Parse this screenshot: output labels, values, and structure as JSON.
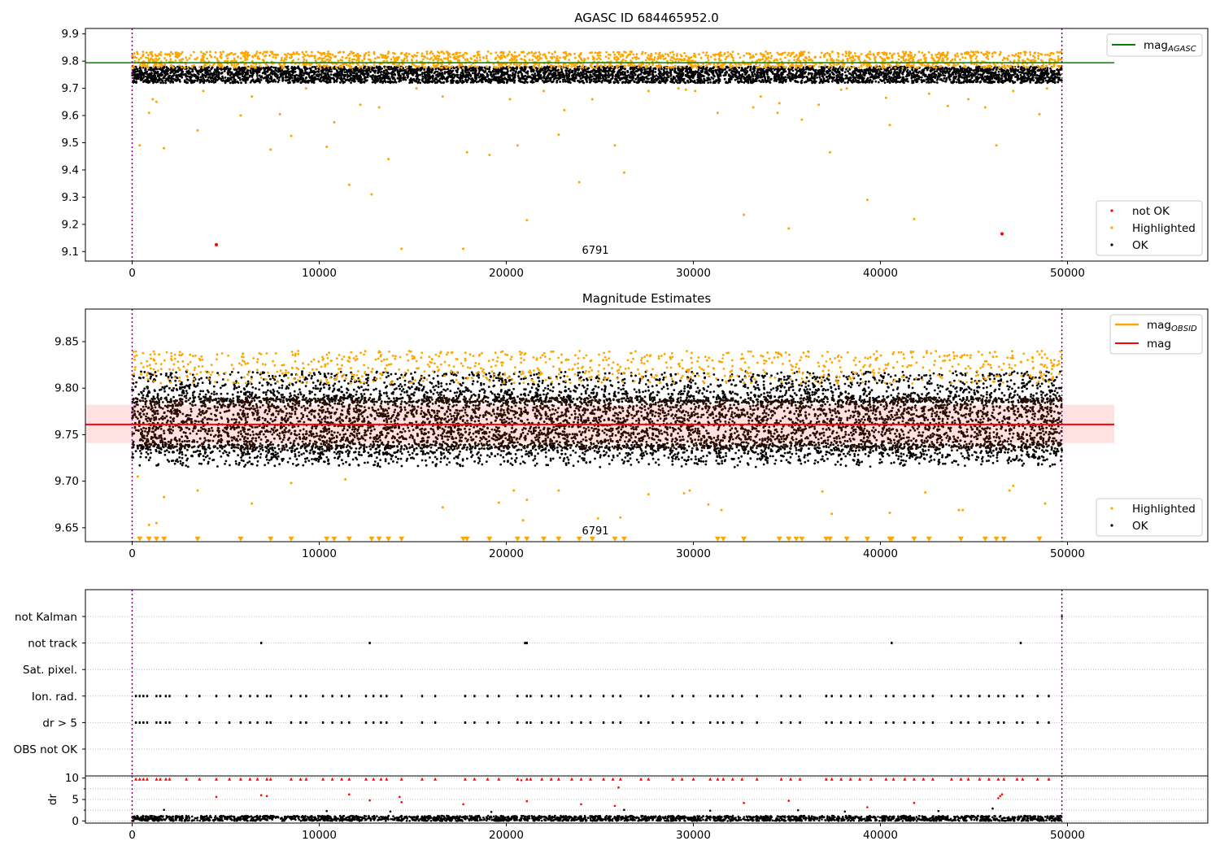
{
  "figure": {
    "background": "#ffffff"
  },
  "chart_data": [
    {
      "type": "scatter",
      "id": "p1",
      "title": "AGASC ID 684465952.0",
      "xlabel": "",
      "ylabel": "",
      "xlim": [
        -2500,
        57500
      ],
      "ylim": [
        9.065,
        9.92
      ],
      "xticks": [
        0,
        10000,
        20000,
        30000,
        40000,
        50000
      ],
      "yticks": [
        9.1,
        9.2,
        9.3,
        9.4,
        9.5,
        9.6,
        9.7,
        9.8,
        9.9
      ],
      "ytick_decimals": 1,
      "grid": false,
      "vlines": {
        "x": [
          0,
          49700
        ],
        "color": "#800080"
      },
      "hline": {
        "y": 9.794,
        "x": [
          -2500,
          52500
        ],
        "color": "#008000"
      },
      "band": {
        "lo": 9.72,
        "hi": 9.78,
        "color": "#000000",
        "density": 5200
      },
      "upper_fringe": {
        "lo": 9.775,
        "hi": 9.835,
        "color": "#ffa500",
        "density": 1900
      },
      "annotation": {
        "text": "6791",
        "x": 24500,
        "y": 9.06
      },
      "series": [
        {
          "name": "not OK",
          "color": "#ff0000",
          "x": [
            4500,
            46500
          ],
          "y": [
            9.125,
            9.165
          ]
        },
        {
          "name": "Highlighted",
          "color": "#ffa500",
          "x": [
            400,
            900,
            1300,
            1700,
            3500,
            5800,
            7400,
            8500,
            10400,
            10800,
            11600,
            12800,
            13200,
            13700,
            14400,
            17700,
            17900,
            19100,
            20600,
            21100,
            22800,
            23900,
            25800,
            26300,
            27600,
            31300,
            32700,
            33200,
            34600,
            35100,
            35800,
            37300,
            37900,
            39300,
            40500,
            41800,
            43600,
            46200,
            48500,
            3800,
            6400,
            9300,
            15200,
            16600,
            20200,
            22000,
            24600,
            29200,
            30100,
            33600,
            38200,
            42600,
            44700,
            47100,
            48900,
            1100,
            7900,
            12200,
            23100,
            29600,
            34500,
            36700,
            40300,
            45600
          ],
          "y": [
            9.49,
            9.61,
            9.65,
            9.48,
            9.545,
            9.6,
            9.475,
            9.525,
            9.485,
            9.575,
            9.345,
            9.31,
            9.63,
            9.44,
            9.11,
            9.11,
            9.465,
            9.455,
            9.49,
            9.215,
            9.53,
            9.355,
            9.49,
            9.39,
            9.69,
            9.61,
            9.235,
            9.63,
            9.645,
            9.185,
            9.585,
            9.465,
            9.695,
            9.29,
            9.565,
            9.22,
            9.635,
            9.49,
            9.605,
            9.69,
            9.67,
            9.7,
            9.7,
            9.67,
            9.66,
            9.69,
            9.66,
            9.7,
            9.69,
            9.67,
            9.7,
            9.68,
            9.66,
            9.69,
            9.7,
            9.66,
            9.605,
            9.64,
            9.62,
            9.695,
            9.61,
            9.64,
            9.665,
            9.63
          ]
        },
        {
          "name": "OK",
          "color": "#000000",
          "x": [],
          "y": []
        }
      ],
      "legends": [
        {
          "placement": "upper-right",
          "entries": [
            {
              "kind": "line",
              "color": "#008000",
              "label": "mag",
              "sub": "AGASC"
            }
          ]
        },
        {
          "placement": "lower-right",
          "entries": [
            {
              "kind": "dot",
              "color": "#ff0000",
              "label": "not OK"
            },
            {
              "kind": "dot",
              "color": "#ffa500",
              "label": "Highlighted"
            },
            {
              "kind": "dot",
              "color": "#000000",
              "label": "OK"
            }
          ]
        }
      ]
    },
    {
      "type": "scatter",
      "id": "p2",
      "title": "Magnitude Estimates",
      "xlabel": "",
      "ylabel": "",
      "xlim": [
        -2500,
        57500
      ],
      "ylim": [
        9.635,
        9.885
      ],
      "xticks": [
        0,
        10000,
        20000,
        30000,
        40000,
        50000
      ],
      "yticks": [
        9.65,
        9.7,
        9.75,
        9.8,
        9.85
      ],
      "ytick_decimals": 2,
      "grid": false,
      "vlines": {
        "x": [
          0,
          49700
        ],
        "color": "#800080"
      },
      "shade": {
        "lo": 9.741,
        "hi": 9.782,
        "x": [
          -2500,
          52500
        ],
        "color": "#ffb3b3",
        "opacity": 0.4
      },
      "hline": {
        "y": 9.761,
        "x": [
          -2500,
          52500
        ],
        "color": "#ff0000"
      },
      "band": {
        "lo": 9.735,
        "hi": 9.79,
        "color": "#2a0e00",
        "density": 6500
      },
      "spikes": {
        "lo": 9.715,
        "hi": 9.818,
        "color": "#000000",
        "density": 3800
      },
      "upper_fringe": {
        "lo": 9.805,
        "hi": 9.84,
        "color": "#ffa500",
        "density": 900
      },
      "annotation": {
        "text": "6791",
        "x": 24500,
        "y": 9.637
      },
      "floor_markers": {
        "y": 9.637,
        "color": "#ffa500",
        "x": [
          400,
          900,
          1300,
          1700,
          3500,
          5800,
          7400,
          8500,
          10400,
          10800,
          11600,
          12800,
          13200,
          13700,
          14400,
          17700,
          17900,
          19100,
          20600,
          21100,
          22000,
          22800,
          23900,
          24600,
          25800,
          26300,
          31300,
          31600,
          32700,
          34600,
          35100,
          35500,
          35800,
          37100,
          37300,
          38200,
          39300,
          40500,
          40600,
          41800,
          42600,
          44300,
          45600,
          46200,
          46600,
          48500
        ]
      },
      "series": [
        {
          "name": "Highlighted",
          "color": "#ffa500",
          "x": [
            1300,
            1700,
            3500,
            6400,
            8500,
            16600,
            20400,
            20900,
            21100,
            22800,
            24900,
            26100,
            27600,
            29500,
            29800,
            30800,
            31500,
            36900,
            37400,
            40500,
            42400,
            44200,
            44400,
            46900,
            47100,
            48800,
            300,
            900,
            11400,
            19600
          ],
          "y": [
            9.655,
            9.683,
            9.69,
            9.676,
            9.698,
            9.672,
            9.69,
            9.658,
            9.68,
            9.69,
            9.66,
            9.661,
            9.686,
            9.687,
            9.69,
            9.675,
            9.669,
            9.689,
            9.665,
            9.666,
            9.688,
            9.669,
            9.669,
            9.69,
            9.695,
            9.676,
            9.705,
            9.653,
            9.702,
            9.677
          ]
        },
        {
          "name": "OK",
          "color": "#000000",
          "x": [],
          "y": []
        }
      ],
      "legends": [
        {
          "placement": "upper-right",
          "entries": [
            {
              "kind": "line",
              "color": "#ffa500",
              "label": "mag",
              "sub": "OBSID"
            },
            {
              "kind": "line",
              "color": "#ff0000",
              "label": "mag"
            }
          ]
        },
        {
          "placement": "lower-right",
          "entries": [
            {
              "kind": "dot",
              "color": "#ffa500",
              "label": "Highlighted"
            },
            {
              "kind": "dot",
              "color": "#000000",
              "label": "OK"
            }
          ]
        }
      ]
    },
    {
      "type": "scatter",
      "id": "p3",
      "title": "",
      "xlabel": "",
      "ylabel": "",
      "xlim": [
        -2500,
        57500
      ],
      "categories": [
        "not Kalman",
        "not track",
        "Sat. pixel.",
        "Ion. rad.",
        "dr > 5",
        "OBS not OK"
      ],
      "grid": true,
      "vlines": {
        "x": [
          0,
          49700
        ],
        "color": "#800080"
      },
      "flags": [
        {
          "category": "not track",
          "x": [
            6900,
            12700,
            21000,
            21100,
            40600,
            47500
          ]
        },
        {
          "category": "Ion. rad.",
          "x": [
            200,
            400,
            600,
            800,
            1300,
            1500,
            1800,
            2000,
            2900,
            3600,
            4500,
            5200,
            5800,
            6300,
            6700,
            7200,
            7400,
            8500,
            9000,
            9300,
            10200,
            10700,
            11200,
            11600,
            12500,
            12900,
            13300,
            13600,
            14400,
            15500,
            16200,
            17800,
            18300,
            19000,
            19600,
            20600,
            21100,
            21300,
            21900,
            22400,
            22800,
            23500,
            24000,
            24500,
            25200,
            25700,
            26100,
            27200,
            27600,
            28900,
            29400,
            30000,
            30900,
            31300,
            31600,
            32100,
            32600,
            33400,
            34700,
            35200,
            35700,
            37100,
            37400,
            37900,
            38400,
            38900,
            39500,
            40300,
            40700,
            41300,
            41800,
            42300,
            42800,
            43800,
            44300,
            44700,
            45300,
            45800,
            46300,
            46600,
            47300,
            47600,
            48400,
            49000
          ]
        },
        {
          "category": "dr > 5",
          "x": [
            200,
            400,
            600,
            800,
            1300,
            1500,
            1800,
            2000,
            2900,
            3600,
            4500,
            5200,
            5800,
            6300,
            6700,
            7200,
            7400,
            8500,
            9000,
            9300,
            10200,
            10700,
            11200,
            11600,
            12500,
            12900,
            13300,
            13600,
            14400,
            15500,
            16200,
            17800,
            18300,
            19000,
            19600,
            20600,
            21100,
            21300,
            21900,
            22400,
            22800,
            23500,
            24000,
            24500,
            25200,
            25700,
            26100,
            27200,
            27600,
            28900,
            29400,
            30000,
            30900,
            31300,
            31600,
            32100,
            32600,
            33400,
            34700,
            35200,
            35700,
            37100,
            37400,
            37900,
            38400,
            38900,
            39500,
            40300,
            40700,
            41300,
            41800,
            42300,
            42800,
            43800,
            44300,
            44700,
            45300,
            45800,
            46300,
            46600,
            47300,
            47600,
            48400,
            49000
          ]
        }
      ]
    },
    {
      "type": "scatter",
      "id": "p4",
      "title": "",
      "xlabel": "",
      "ylabel": "dr",
      "xlim": [
        -2500,
        57500
      ],
      "ylim": [
        -0.5,
        10.5
      ],
      "xticks": [
        0,
        10000,
        20000,
        30000,
        40000,
        50000
      ],
      "yticks": [
        0,
        5,
        10
      ],
      "ytick_decimals": 0,
      "grid": true,
      "vlines": {
        "x": [
          0,
          49700
        ],
        "color": "#800080"
      },
      "band": {
        "lo": 0,
        "hi": 1.2,
        "color": "#000000",
        "density": 2400
      },
      "red_row": {
        "y": 9.8,
        "color": "#ff0000",
        "x": [
          200,
          400,
          600,
          800,
          1300,
          1500,
          1800,
          2000,
          2900,
          3600,
          4500,
          5200,
          5800,
          6300,
          6700,
          7200,
          7400,
          8500,
          9000,
          9300,
          10200,
          10700,
          11200,
          11600,
          12500,
          12900,
          13300,
          13600,
          14400,
          15500,
          16200,
          17800,
          18300,
          19000,
          19600,
          20600,
          21100,
          21300,
          21900,
          22400,
          22800,
          23500,
          24000,
          24500,
          25200,
          25700,
          26100,
          27200,
          27600,
          28900,
          29400,
          30000,
          30900,
          31300,
          31600,
          32100,
          32600,
          33400,
          34700,
          35200,
          35700,
          37100,
          37400,
          37900,
          38400,
          38900,
          39500,
          40300,
          40700,
          41300,
          41800,
          42300,
          42800,
          43800,
          44300,
          44700,
          45300,
          45800,
          46300,
          46600,
          47300,
          47600,
          48400,
          49000
        ]
      },
      "series": [
        {
          "name": "",
          "color": "#ff0000",
          "x": [
            4500,
            6900,
            7200,
            11600,
            12700,
            14300,
            14400,
            17700,
            21100,
            24000,
            25800,
            26000,
            32700,
            35100,
            39300,
            41800,
            46300,
            46400,
            46500,
            20800
          ],
          "y": [
            5.6,
            6.0,
            5.8,
            6.2,
            4.8,
            5.6,
            4.4,
            3.9,
            4.6,
            3.9,
            3.5,
            7.8,
            4.2,
            4.7,
            3.2,
            4.2,
            5.3,
            5.8,
            6.2,
            9.5
          ]
        },
        {
          "name": "",
          "color": "#000000",
          "x": [
            1700,
            10400,
            13800,
            19200,
            26300,
            30900,
            35600,
            38100,
            43100,
            46000
          ],
          "y": [
            2.6,
            2.3,
            2.2,
            2.1,
            2.6,
            2.4,
            2.5,
            2.2,
            2.3,
            2.9
          ]
        }
      ]
    }
  ]
}
